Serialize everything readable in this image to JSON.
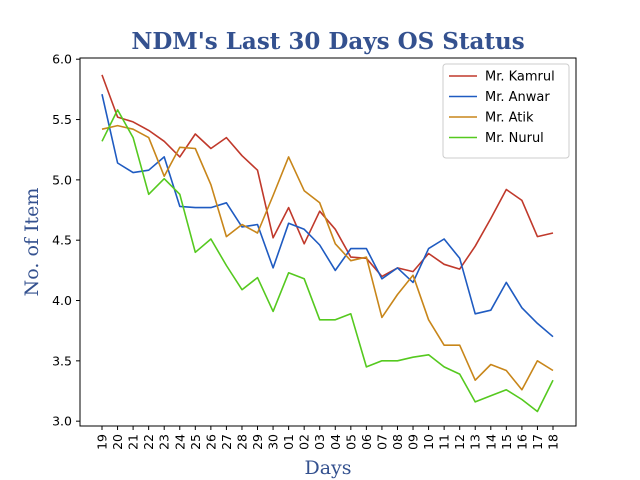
{
  "chart_data": {
    "type": "line",
    "title": "NDM's Last 30 Days OS Status",
    "xlabel": "Days",
    "ylabel": "No. of Item",
    "categories": [
      "19",
      "20",
      "21",
      "22",
      "23",
      "24",
      "25",
      "26",
      "27",
      "28",
      "29",
      "30",
      "01",
      "02",
      "03",
      "04",
      "05",
      "06",
      "07",
      "08",
      "09",
      "10",
      "11",
      "12",
      "13",
      "14",
      "15",
      "16",
      "17",
      "18"
    ],
    "ylim": [
      2.96,
      6.01
    ],
    "yticks": [
      "3.0",
      "3.5",
      "4.0",
      "4.5",
      "5.0",
      "5.5",
      "6.0"
    ],
    "ytick_values": [
      3.0,
      3.5,
      4.0,
      4.5,
      5.0,
      5.5,
      6.0
    ],
    "grid": false,
    "legend_position": "top-right",
    "series": [
      {
        "name": "Mr. Kamrul",
        "color": "#c0392b",
        "values": [
          5.87,
          5.52,
          5.48,
          5.41,
          5.32,
          5.19,
          5.38,
          5.26,
          5.35,
          5.2,
          5.08,
          4.52,
          4.77,
          4.47,
          4.74,
          4.59,
          4.36,
          4.35,
          4.2,
          4.27,
          4.24,
          4.39,
          4.3,
          4.26,
          4.45,
          4.68,
          4.92,
          4.83,
          4.53,
          4.56
        ]
      },
      {
        "name": "Mr. Anwar",
        "color": "#1f5bc1",
        "values": [
          5.71,
          5.14,
          5.06,
          5.08,
          5.19,
          4.78,
          4.77,
          4.77,
          4.81,
          4.61,
          4.63,
          4.27,
          4.64,
          4.59,
          4.46,
          4.25,
          4.43,
          4.43,
          4.18,
          4.27,
          4.15,
          4.43,
          4.51,
          4.35,
          3.89,
          3.92,
          4.15,
          3.94,
          3.81,
          3.7
        ]
      },
      {
        "name": "Mr. Atik",
        "color": "#c8861a",
        "values": [
          5.42,
          5.45,
          5.42,
          5.35,
          5.03,
          5.27,
          5.26,
          4.96,
          4.53,
          4.63,
          4.56,
          4.87,
          5.19,
          4.91,
          4.81,
          4.47,
          4.33,
          4.36,
          3.86,
          4.05,
          4.21,
          3.84,
          3.63,
          3.63,
          3.34,
          3.47,
          3.42,
          3.26,
          3.5,
          3.42
        ]
      },
      {
        "name": "Mr. Nurul",
        "color": "#55c91f",
        "values": [
          5.32,
          5.58,
          5.35,
          4.88,
          5.01,
          4.88,
          4.4,
          4.51,
          4.29,
          4.09,
          4.19,
          3.91,
          4.23,
          4.18,
          3.84,
          3.84,
          3.89,
          3.45,
          3.5,
          3.5,
          3.53,
          3.55,
          3.45,
          3.39,
          3.16,
          3.21,
          3.26,
          3.18,
          3.08,
          3.34
        ]
      }
    ]
  }
}
